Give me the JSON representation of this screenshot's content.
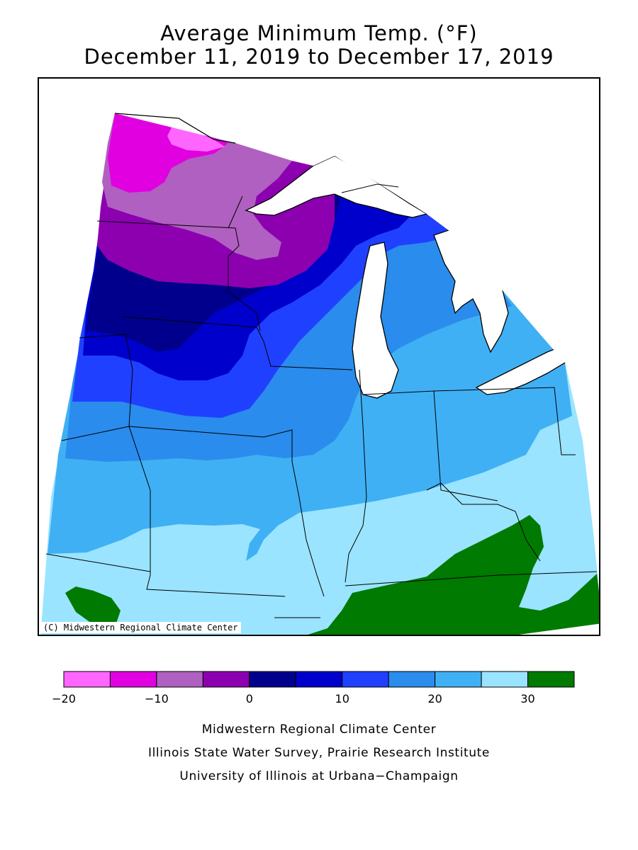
{
  "title_line1": "Average Minimum Temp. (°F)",
  "title_line2": "December 11, 2019 to December 17, 2019",
  "copyright": "(C) Midwestern Regional Climate Center",
  "legend": {
    "colors": [
      "#ff66ff",
      "#e000e0",
      "#b060c0",
      "#8c00b0",
      "#00008c",
      "#0000cc",
      "#2040ff",
      "#2a8cec",
      "#40b0f4",
      "#9ae4ff",
      "#007a00"
    ],
    "ticks": [
      {
        "label": "−20",
        "value": -20
      },
      {
        "label": "−10",
        "value": -10
      },
      {
        "label": "0",
        "value": 0
      },
      {
        "label": "10",
        "value": 10
      },
      {
        "label": "20",
        "value": 20
      },
      {
        "label": "30",
        "value": 30
      }
    ],
    "min": -20,
    "max": 35
  },
  "credits": {
    "line1": "Midwestern Regional Climate Center",
    "line2": "Illinois State Water Survey, Prairie Research Institute",
    "line3": "University of Illinois at Urbana−Champaign"
  }
}
